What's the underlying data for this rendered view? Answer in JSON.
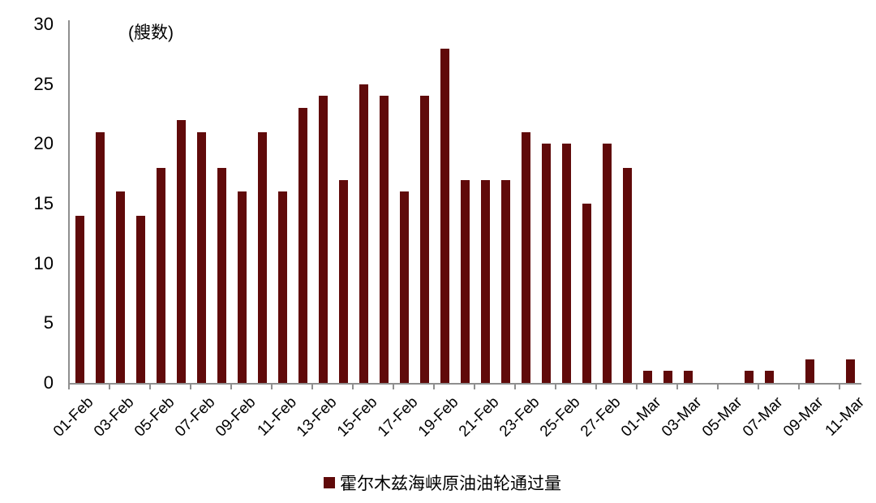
{
  "chart_data": {
    "type": "bar",
    "title": "",
    "unit_label": "(艘数)",
    "legend": {
      "label": "霍尔木兹海峡原油油轮通过量",
      "position": "bottom-center"
    },
    "categories": [
      "01-Feb",
      "02-Feb",
      "03-Feb",
      "04-Feb",
      "05-Feb",
      "06-Feb",
      "07-Feb",
      "08-Feb",
      "09-Feb",
      "10-Feb",
      "11-Feb",
      "12-Feb",
      "13-Feb",
      "14-Feb",
      "15-Feb",
      "16-Feb",
      "17-Feb",
      "18-Feb",
      "19-Feb",
      "20-Feb",
      "21-Feb",
      "22-Feb",
      "23-Feb",
      "24-Feb",
      "25-Feb",
      "26-Feb",
      "27-Feb",
      "28-Feb",
      "01-Mar",
      "02-Mar",
      "03-Mar",
      "04-Mar",
      "05-Mar",
      "06-Mar",
      "07-Mar",
      "08-Mar",
      "09-Mar",
      "10-Mar",
      "11-Mar"
    ],
    "values": [
      14,
      21,
      16,
      14,
      18,
      22,
      21,
      18,
      16,
      21,
      16,
      23,
      24,
      17,
      25,
      24,
      16,
      24,
      28,
      17,
      17,
      17,
      21,
      20,
      20,
      15,
      20,
      18,
      1,
      1,
      1,
      0,
      0,
      1,
      1,
      0,
      2,
      0,
      2
    ],
    "x_axis": {
      "tick_label_interval": 2,
      "tick_labels_shown": [
        "01-Feb",
        "03-Feb",
        "05-Feb",
        "07-Feb",
        "09-Feb",
        "11-Feb",
        "13-Feb",
        "15-Feb",
        "17-Feb",
        "19-Feb",
        "21-Feb",
        "23-Feb",
        "25-Feb",
        "27-Feb",
        "01-Mar",
        "03-Mar",
        "05-Mar",
        "07-Mar",
        "09-Mar",
        "11-Mar"
      ]
    },
    "y_axis": {
      "min": 0,
      "max": 30,
      "tick_interval": 5,
      "ticks": [
        0,
        5,
        10,
        15,
        20,
        25,
        30
      ]
    },
    "grid": false,
    "colors": {
      "bar": "#600A0A",
      "axis": "#8F8F8F",
      "text": "#000000",
      "background": "#FFFFFF"
    }
  }
}
